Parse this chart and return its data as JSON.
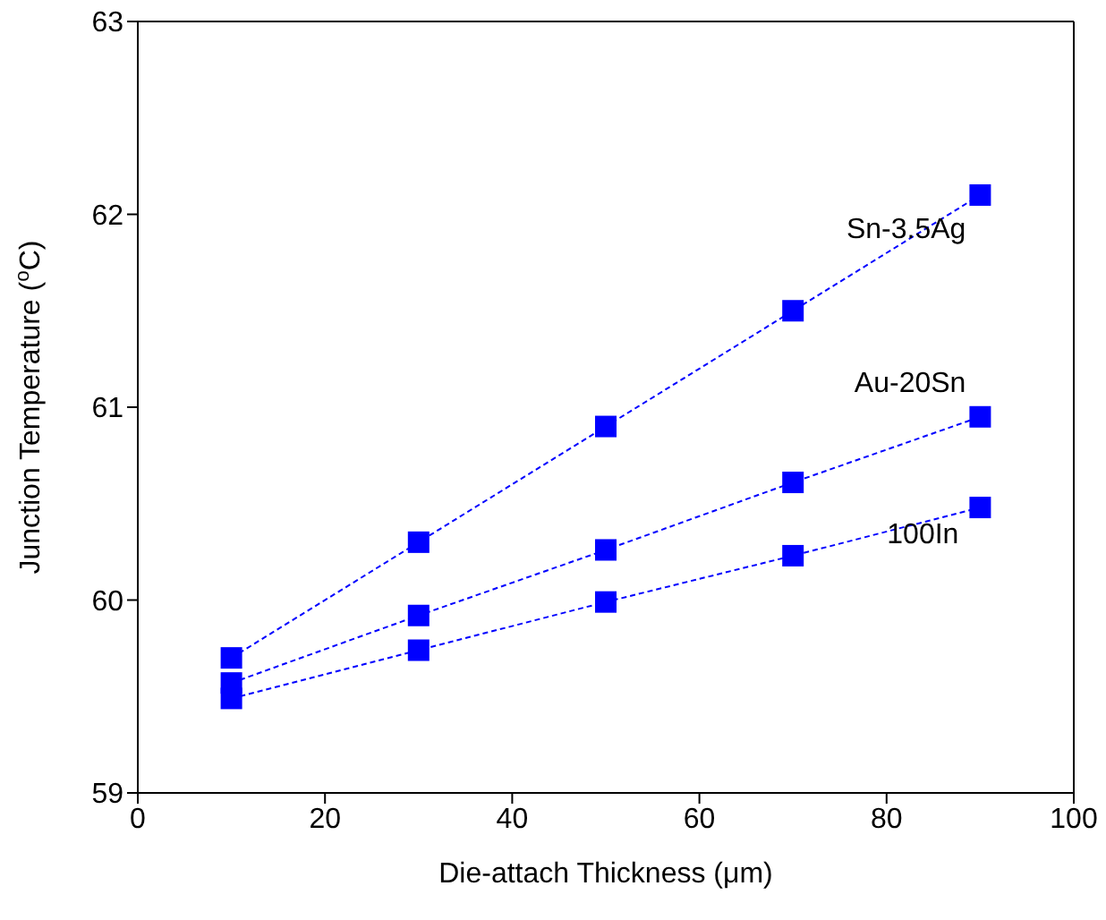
{
  "chart_data": {
    "type": "line",
    "xlabel": "Die-attach Thickness (μm)",
    "ylabel": "Junction Temperature ($^{o}$C)",
    "x": [
      10,
      30,
      50,
      70,
      90
    ],
    "series": [
      {
        "name": "Sn-3.5Ag",
        "color": "#0000ff",
        "values": [
          59.7,
          60.3,
          60.9,
          61.5,
          62.1
        ]
      },
      {
        "name": "Au-20Sn",
        "color": "#0000ff",
        "values": [
          59.57,
          59.92,
          60.26,
          60.61,
          60.95
        ]
      },
      {
        "name": "100In",
        "color": "#0000ff",
        "values": [
          59.49,
          59.74,
          59.99,
          60.23,
          60.48
        ]
      }
    ],
    "xlim": [
      0,
      100
    ],
    "xticks": [
      0,
      20,
      40,
      60,
      80,
      100
    ],
    "ylim": [
      59,
      63
    ],
    "yticks": [
      59,
      60,
      61,
      62,
      63
    ],
    "marker": "square",
    "line_style": "dashed"
  }
}
